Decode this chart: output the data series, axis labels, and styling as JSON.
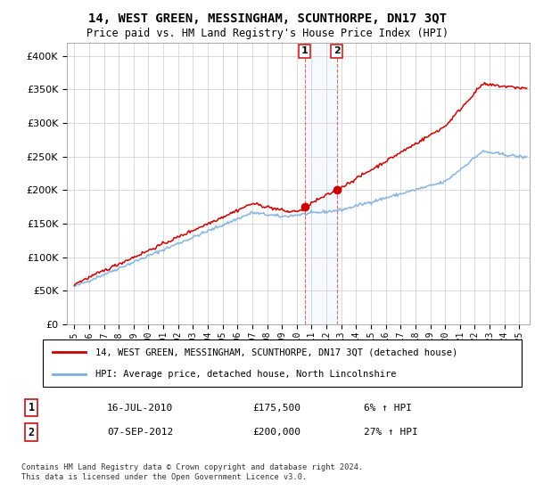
{
  "title": "14, WEST GREEN, MESSINGHAM, SCUNTHORPE, DN17 3QT",
  "subtitle": "Price paid vs. HM Land Registry's House Price Index (HPI)",
  "legend_line1": "14, WEST GREEN, MESSINGHAM, SCUNTHORPE, DN17 3QT (detached house)",
  "legend_line2": "HPI: Average price, detached house, North Lincolnshire",
  "transaction1_label": "1",
  "transaction1_date": "16-JUL-2010",
  "transaction1_price": "£175,500",
  "transaction1_hpi": "6% ↑ HPI",
  "transaction2_label": "2",
  "transaction2_date": "07-SEP-2012",
  "transaction2_price": "£200,000",
  "transaction2_hpi": "27% ↑ HPI",
  "footnote": "Contains HM Land Registry data © Crown copyright and database right 2024.\nThis data is licensed under the Open Government Licence v3.0.",
  "ylim": [
    0,
    420000
  ],
  "yticks": [
    0,
    50000,
    100000,
    150000,
    200000,
    250000,
    300000,
    350000,
    400000
  ],
  "red_color": "#cc0000",
  "blue_color": "#7aacdc",
  "shade_color": "#ddeeff",
  "sale1_year": 2010.54,
  "sale1_price": 175500,
  "sale2_year": 2012.69,
  "sale2_price": 200000,
  "grid_color": "#cccccc"
}
